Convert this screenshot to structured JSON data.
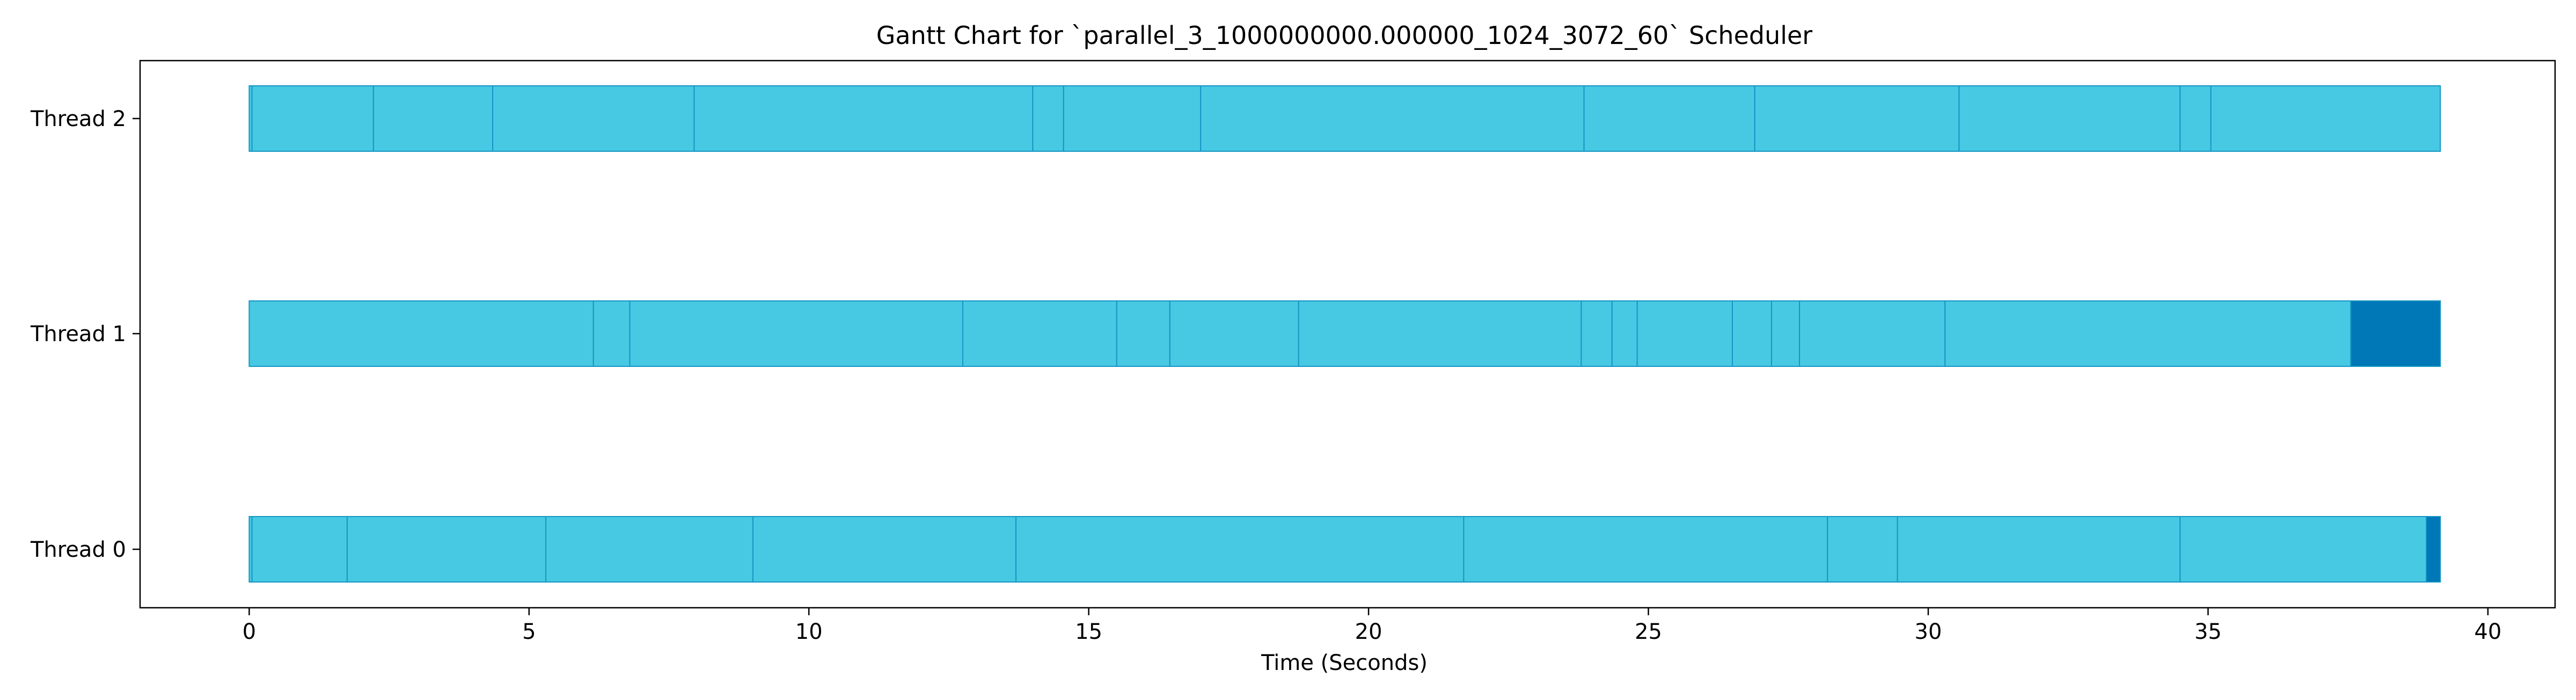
{
  "chart_data": {
    "type": "gantt",
    "title": "Gantt Chart for `parallel_3_1000000000.000000_1024_3072_60` Scheduler",
    "xlabel": "Time (Seconds)",
    "ylabel": "",
    "xlim": [
      -1.95,
      41.2
    ],
    "xticks": [
      0,
      5,
      10,
      15,
      20,
      25,
      30,
      35,
      40
    ],
    "grid": false,
    "colors": {
      "segment": "#48c9e3",
      "segment_edge": "#1496c4",
      "highlight": "#0077b6"
    },
    "rows": [
      {
        "label": "Thread 2",
        "boundaries": [
          0,
          0.05,
          2.22,
          4.35,
          7.95,
          14.0,
          14.55,
          17.0,
          23.85,
          26.9,
          30.55,
          34.5,
          35.05,
          39.15
        ],
        "highlighted": []
      },
      {
        "label": "Thread 1",
        "boundaries": [
          0,
          6.15,
          6.8,
          12.75,
          15.5,
          16.45,
          18.75,
          23.8,
          24.35,
          24.8,
          26.5,
          27.2,
          27.7,
          30.3,
          37.55,
          39.15
        ],
        "highlighted": [
          [
            37.55,
            39.15
          ]
        ]
      },
      {
        "label": "Thread 0",
        "boundaries": [
          0,
          0.05,
          1.75,
          5.3,
          9.0,
          13.7,
          21.7,
          28.2,
          29.45,
          34.5,
          38.9,
          39.15
        ],
        "highlighted": [
          [
            38.9,
            39.15
          ]
        ]
      }
    ]
  }
}
